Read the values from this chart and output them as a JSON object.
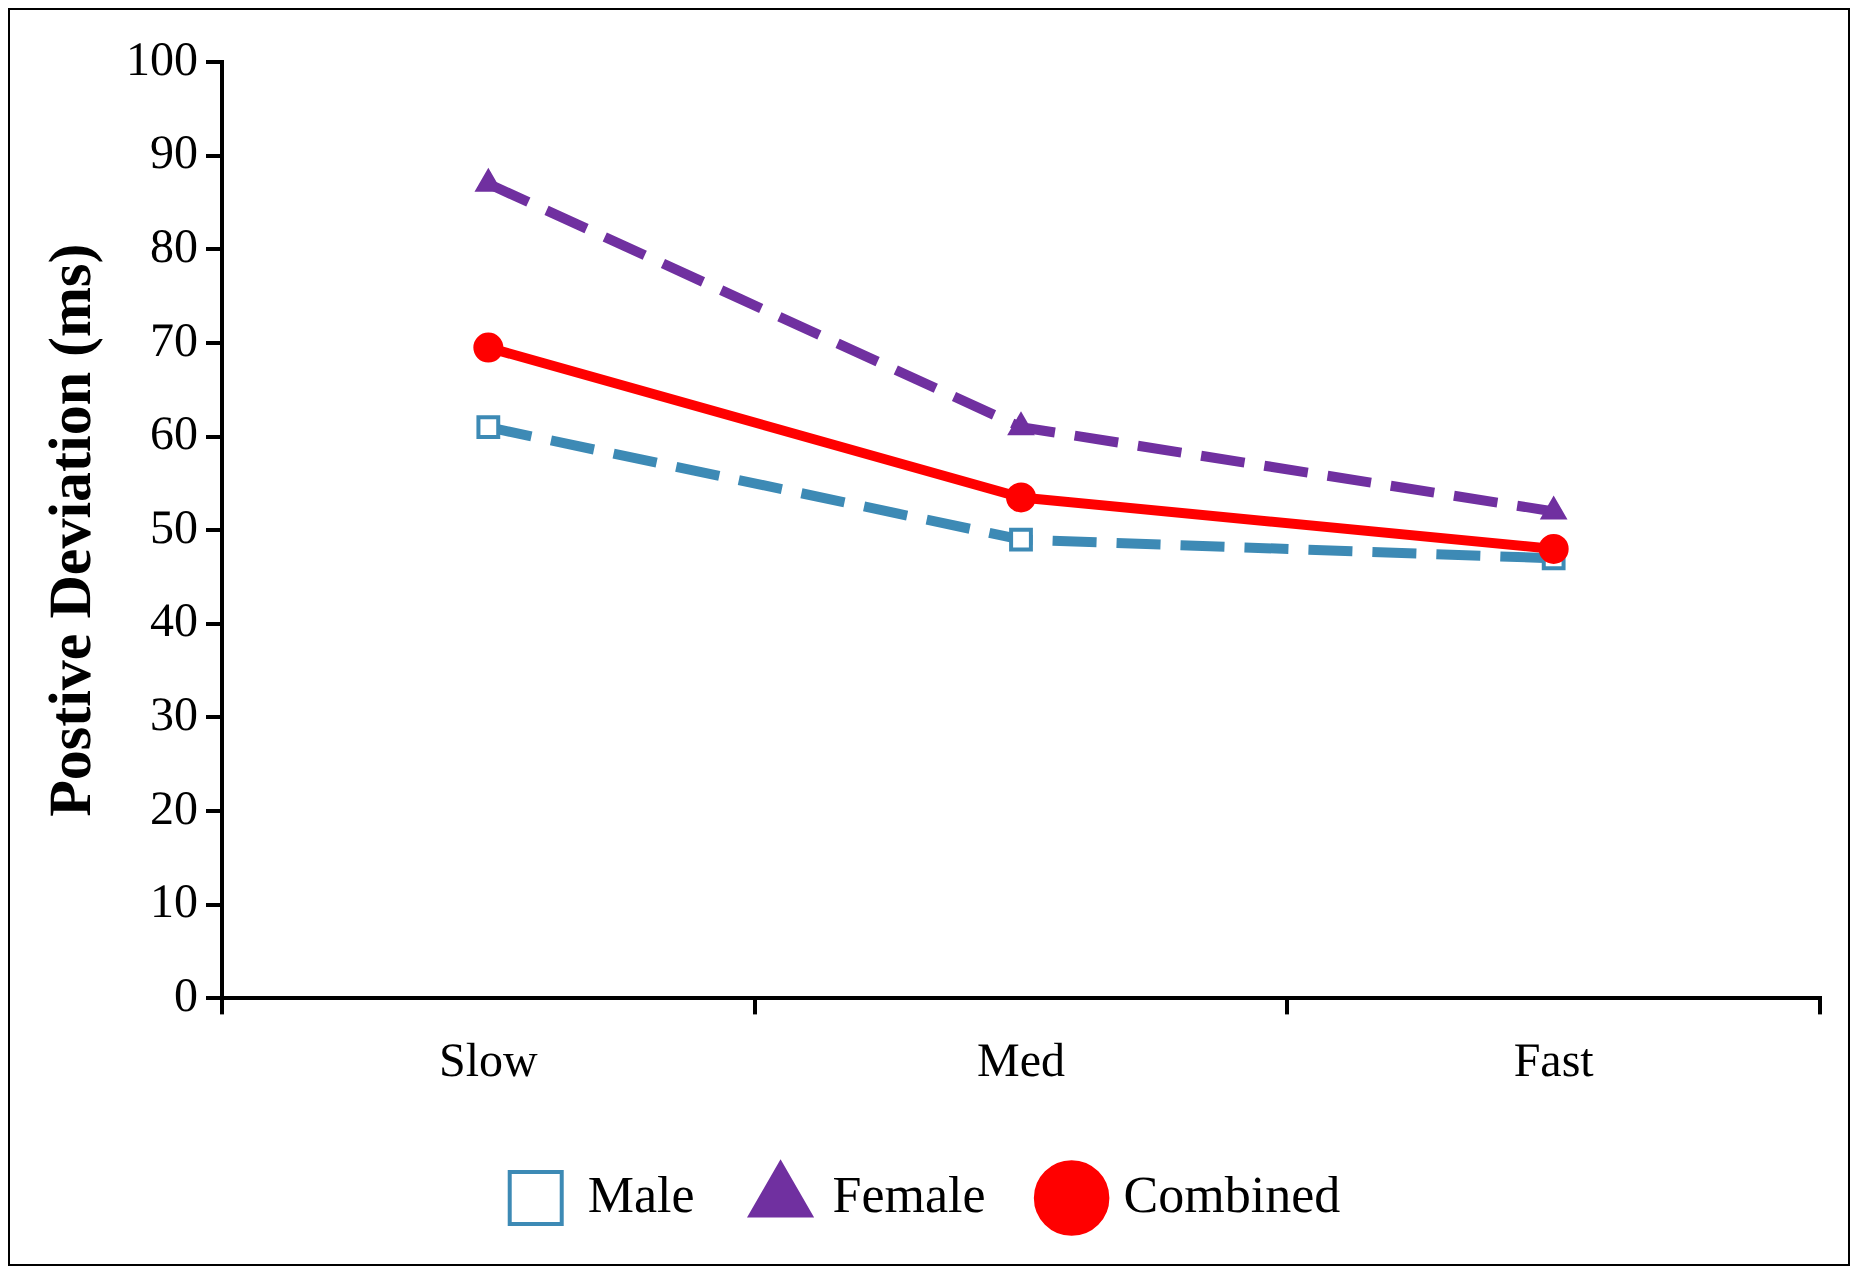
{
  "chart_data": {
    "type": "line",
    "ylabel": "Postive Deviation (ms)",
    "categories": [
      "Slow",
      "Med",
      "Fast"
    ],
    "series": [
      {
        "name": "Male",
        "color": "#3d8ab5",
        "values": [
          61,
          49,
          47
        ],
        "marker": "square",
        "line_style": "dashed"
      },
      {
        "name": "Female",
        "color": "#7030a0",
        "values": [
          87,
          61,
          52
        ],
        "marker": "triangle",
        "line_style": "dashed"
      },
      {
        "name": "Combined",
        "color": "#ff0000",
        "values": [
          69.5,
          53.5,
          48
        ],
        "marker": "circle",
        "line_style": "solid"
      }
    ],
    "ylim": [
      0,
      100
    ],
    "yticks": [
      0,
      10,
      20,
      30,
      40,
      50,
      60,
      70,
      80,
      90,
      100
    ],
    "grid": false,
    "legend": "bottom"
  }
}
